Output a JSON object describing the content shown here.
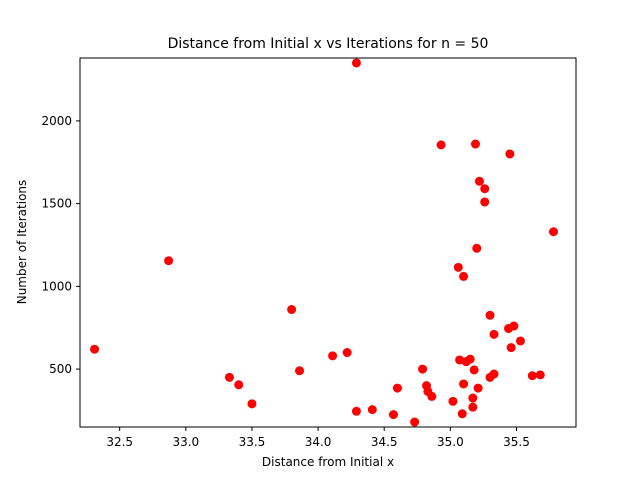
{
  "chart_data": {
    "type": "scatter",
    "title": "Distance from Initial x vs Iterations for n = 50",
    "xlabel": "Distance from Initial x",
    "ylabel": "Number of Iterations",
    "xlim": [
      32.2,
      35.95
    ],
    "ylim": [
      150,
      2380
    ],
    "xticks": [
      32.5,
      33.0,
      33.5,
      34.0,
      34.5,
      35.0,
      35.5
    ],
    "xtick_labels": [
      "32.5",
      "33.0",
      "33.5",
      "34.0",
      "34.5",
      "35.0",
      "35.5"
    ],
    "yticks": [
      500,
      1000,
      1500,
      2000
    ],
    "ytick_labels": [
      "500",
      "1000",
      "1500",
      "2000"
    ],
    "grid": false,
    "marker_color": "#ff0000",
    "points": [
      [
        32.31,
        620
      ],
      [
        32.87,
        1155
      ],
      [
        33.33,
        450
      ],
      [
        33.4,
        405
      ],
      [
        33.5,
        290
      ],
      [
        33.8,
        860
      ],
      [
        33.86,
        490
      ],
      [
        34.11,
        580
      ],
      [
        34.22,
        600
      ],
      [
        34.29,
        2350
      ],
      [
        34.29,
        245
      ],
      [
        34.41,
        255
      ],
      [
        34.57,
        225
      ],
      [
        34.6,
        385
      ],
      [
        34.73,
        180
      ],
      [
        34.79,
        500
      ],
      [
        34.82,
        400
      ],
      [
        34.83,
        365
      ],
      [
        34.86,
        335
      ],
      [
        34.93,
        1855
      ],
      [
        35.02,
        305
      ],
      [
        35.06,
        1115
      ],
      [
        35.07,
        555
      ],
      [
        35.09,
        230
      ],
      [
        35.1,
        1060
      ],
      [
        35.1,
        410
      ],
      [
        35.12,
        545
      ],
      [
        35.15,
        560
      ],
      [
        35.17,
        325
      ],
      [
        35.17,
        270
      ],
      [
        35.18,
        495
      ],
      [
        35.19,
        1860
      ],
      [
        35.2,
        1230
      ],
      [
        35.21,
        385
      ],
      [
        35.22,
        1635
      ],
      [
        35.26,
        1590
      ],
      [
        35.26,
        1510
      ],
      [
        35.3,
        825
      ],
      [
        35.3,
        450
      ],
      [
        35.33,
        470
      ],
      [
        35.33,
        710
      ],
      [
        35.44,
        745
      ],
      [
        35.45,
        1800
      ],
      [
        35.46,
        630
      ],
      [
        35.48,
        760
      ],
      [
        35.53,
        670
      ],
      [
        35.62,
        460
      ],
      [
        35.68,
        465
      ],
      [
        35.78,
        1330
      ]
    ]
  }
}
